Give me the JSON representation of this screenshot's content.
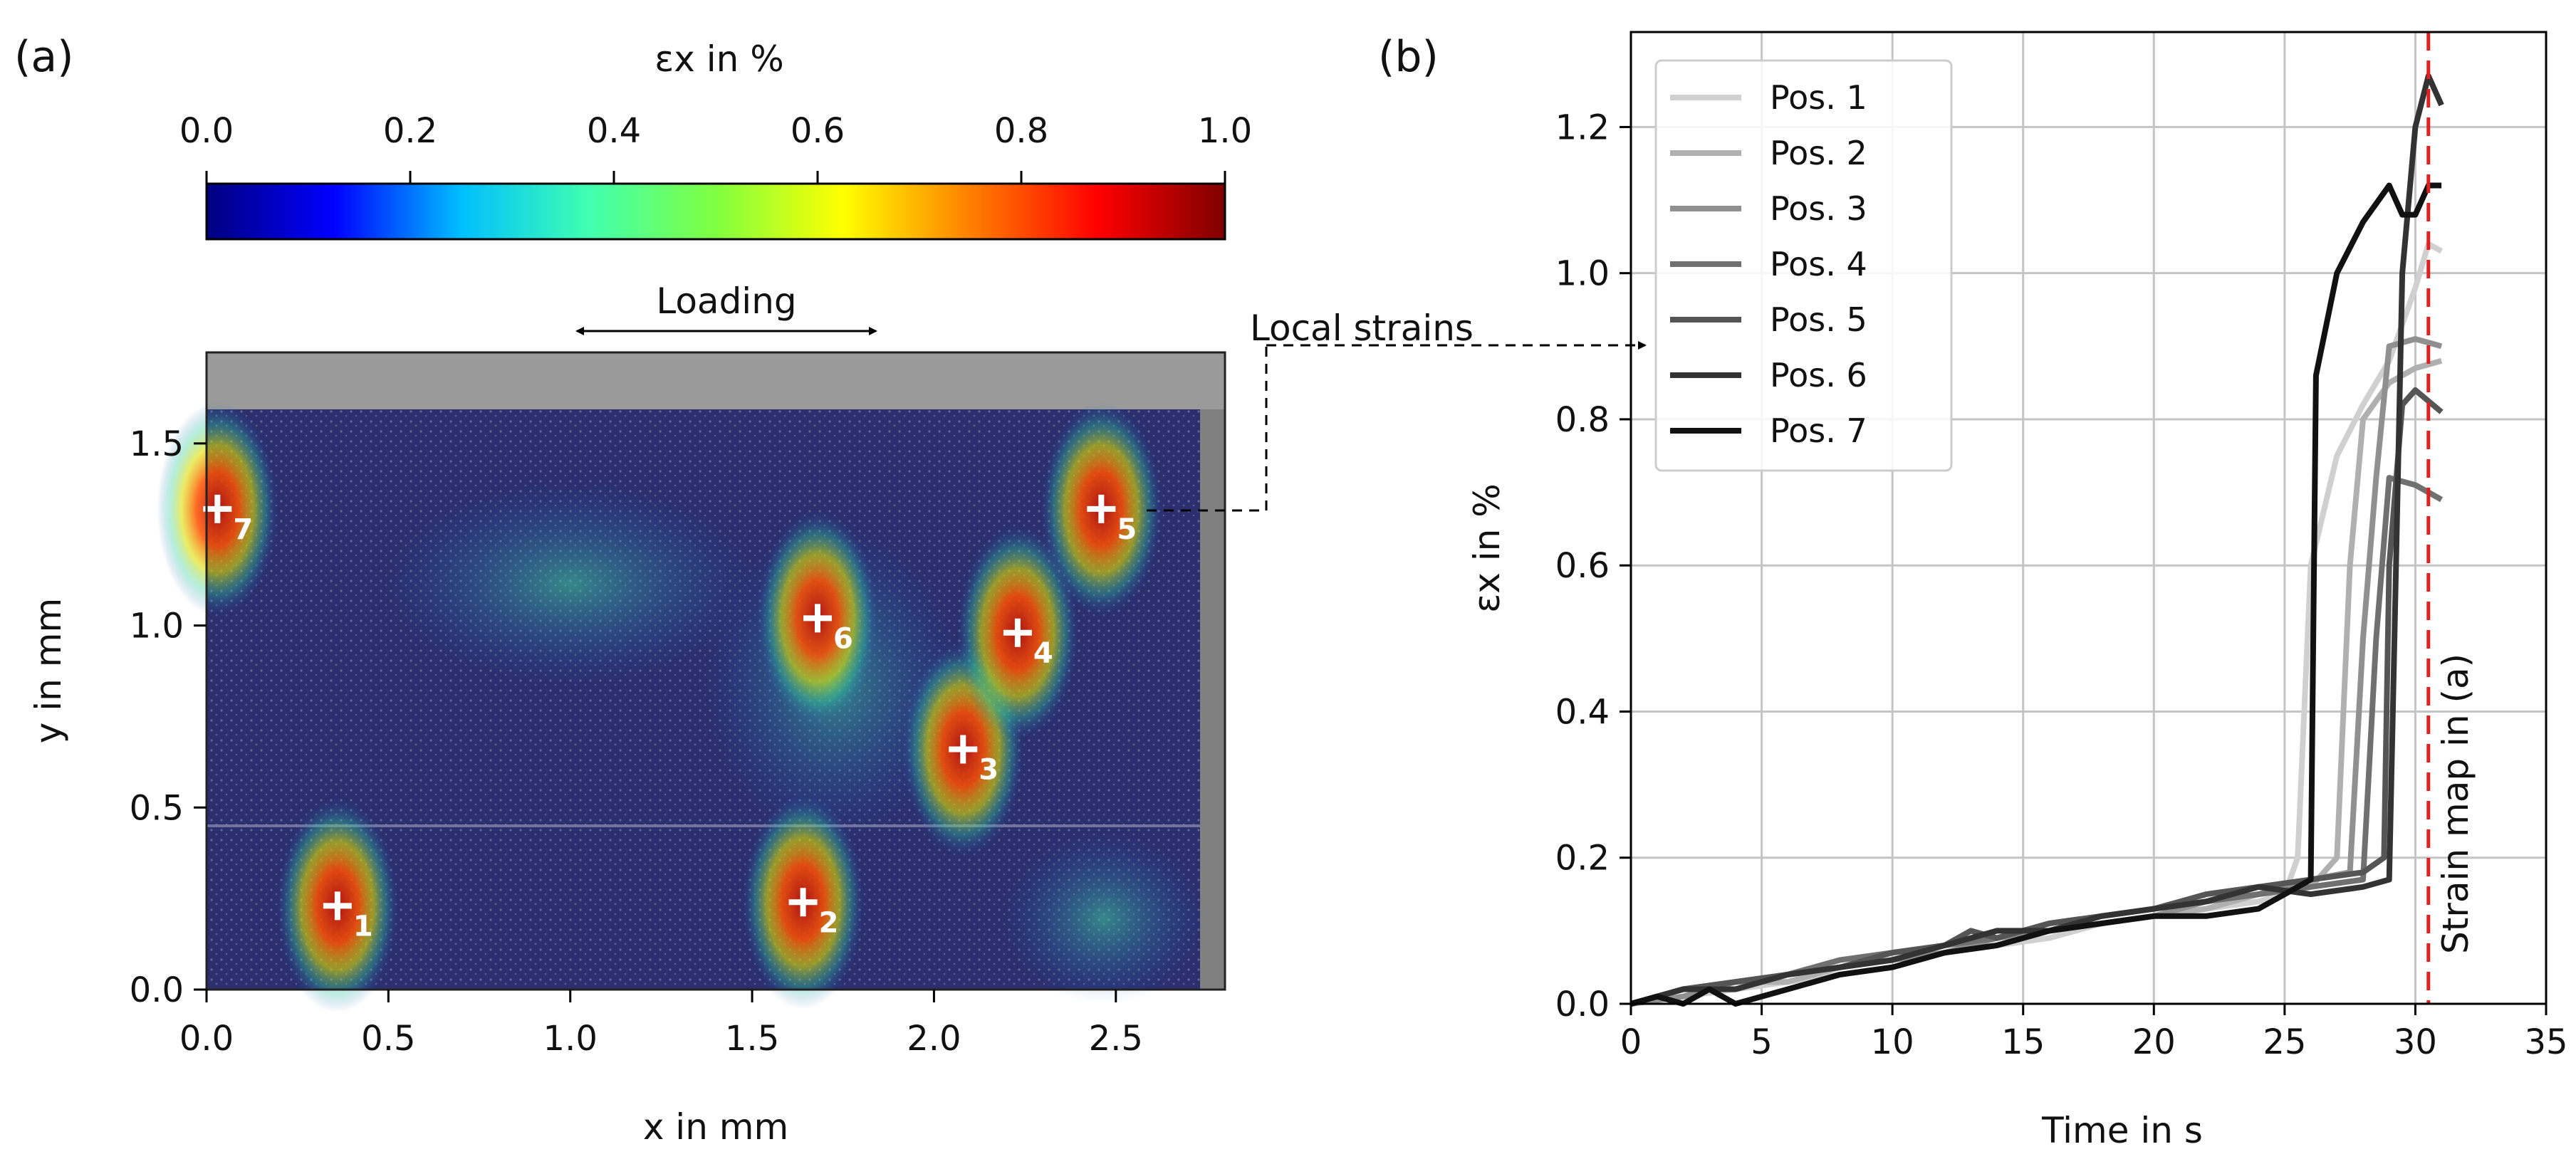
{
  "panel_a": {
    "label": "(a)",
    "colorbar": {
      "title": "εx in %",
      "ticks": [
        "0.0",
        "0.2",
        "0.4",
        "0.6",
        "0.8",
        "1.0"
      ],
      "colormap": "jet",
      "stops": [
        "#00007f",
        "#0000ff",
        "#00bfff",
        "#40ffb0",
        "#80ff40",
        "#ffff00",
        "#ff8000",
        "#ff0000",
        "#7f0000"
      ]
    },
    "loading_label": "Loading",
    "local_strains_label": "Local strains",
    "xlabel": "x in mm",
    "ylabel": "y in mm",
    "xticks": [
      "0.0",
      "0.5",
      "1.0",
      "1.5",
      "2.0",
      "2.5"
    ],
    "yticks": [
      "0.0",
      "0.5",
      "1.0",
      "1.5"
    ],
    "positions": [
      {
        "id": "1",
        "x": 0.36,
        "y": 0.23
      },
      {
        "id": "2",
        "x": 1.64,
        "y": 0.24
      },
      {
        "id": "3",
        "x": 2.08,
        "y": 0.66
      },
      {
        "id": "4",
        "x": 2.23,
        "y": 0.98
      },
      {
        "id": "5",
        "x": 2.46,
        "y": 1.32
      },
      {
        "id": "6",
        "x": 1.68,
        "y": 1.02
      },
      {
        "id": "7",
        "x": 0.03,
        "y": 1.32
      }
    ],
    "colors": {
      "background": "#2b2f6e",
      "specimen_top": "#8f8f8f"
    }
  },
  "chart_data": {
    "type": "line",
    "panel_label": "(b)",
    "title": "",
    "xlabel": "Time in s",
    "ylabel": "εx in %",
    "xlim": [
      0,
      35
    ],
    "ylim": [
      0,
      1.33
    ],
    "xticks": [
      "0",
      "5",
      "10",
      "15",
      "20",
      "25",
      "30",
      "35"
    ],
    "yticks": [
      "0.0",
      "0.2",
      "0.4",
      "0.6",
      "0.8",
      "1.0",
      "1.2"
    ],
    "grid": true,
    "legend_position": "top-left",
    "vline": {
      "x": 30.5,
      "label": "Strain map in (a)",
      "color": "#e02020"
    },
    "series": [
      {
        "name": "Pos. 1",
        "color": "#d0d0d0",
        "points": [
          [
            0,
            0
          ],
          [
            2,
            0.01
          ],
          [
            4,
            0.02
          ],
          [
            6,
            0.03
          ],
          [
            8,
            0.04
          ],
          [
            10,
            0.05
          ],
          [
            12,
            0.07
          ],
          [
            14,
            0.08
          ],
          [
            16,
            0.09
          ],
          [
            18,
            0.11
          ],
          [
            20,
            0.12
          ],
          [
            22,
            0.13
          ],
          [
            24,
            0.14
          ],
          [
            25,
            0.15
          ],
          [
            25.5,
            0.2
          ],
          [
            26,
            0.6
          ],
          [
            27,
            0.75
          ],
          [
            28,
            0.82
          ],
          [
            29,
            0.88
          ],
          [
            30,
            0.98
          ],
          [
            30.5,
            1.04
          ],
          [
            31,
            1.03
          ]
        ]
      },
      {
        "name": "Pos. 2",
        "color": "#b0b0b0",
        "points": [
          [
            0,
            0
          ],
          [
            2,
            0.02
          ],
          [
            4,
            0.03
          ],
          [
            6,
            0.03
          ],
          [
            8,
            0.05
          ],
          [
            10,
            0.06
          ],
          [
            12,
            0.07
          ],
          [
            14,
            0.08
          ],
          [
            16,
            0.1
          ],
          [
            18,
            0.11
          ],
          [
            20,
            0.12
          ],
          [
            22,
            0.13
          ],
          [
            24,
            0.15
          ],
          [
            26,
            0.16
          ],
          [
            27,
            0.2
          ],
          [
            27.5,
            0.6
          ],
          [
            28,
            0.8
          ],
          [
            29,
            0.85
          ],
          [
            30,
            0.87
          ],
          [
            31,
            0.88
          ]
        ]
      },
      {
        "name": "Pos. 3",
        "color": "#909090",
        "points": [
          [
            0,
            0
          ],
          [
            2,
            0.01
          ],
          [
            4,
            0.03
          ],
          [
            6,
            0.04
          ],
          [
            8,
            0.05
          ],
          [
            10,
            0.06
          ],
          [
            12,
            0.07
          ],
          [
            14,
            0.09
          ],
          [
            16,
            0.1
          ],
          [
            18,
            0.11
          ],
          [
            20,
            0.12
          ],
          [
            22,
            0.14
          ],
          [
            24,
            0.15
          ],
          [
            26,
            0.17
          ],
          [
            27.5,
            0.18
          ],
          [
            28,
            0.5
          ],
          [
            28.5,
            0.72
          ],
          [
            29,
            0.9
          ],
          [
            30,
            0.91
          ],
          [
            31,
            0.9
          ]
        ]
      },
      {
        "name": "Pos. 4",
        "color": "#707070",
        "points": [
          [
            0,
            0
          ],
          [
            2,
            0.02
          ],
          [
            4,
            0.03
          ],
          [
            6,
            0.04
          ],
          [
            8,
            0.06
          ],
          [
            10,
            0.07
          ],
          [
            12,
            0.08
          ],
          [
            14,
            0.09
          ],
          [
            16,
            0.11
          ],
          [
            18,
            0.12
          ],
          [
            20,
            0.13
          ],
          [
            22,
            0.14
          ],
          [
            24,
            0.15
          ],
          [
            26,
            0.16
          ],
          [
            28,
            0.17
          ],
          [
            28.5,
            0.5
          ],
          [
            29,
            0.72
          ],
          [
            30,
            0.71
          ],
          [
            31,
            0.69
          ]
        ]
      },
      {
        "name": "Pos. 5",
        "color": "#555555",
        "points": [
          [
            0,
            0
          ],
          [
            2,
            0.02
          ],
          [
            4,
            0.03
          ],
          [
            6,
            0.04
          ],
          [
            8,
            0.05
          ],
          [
            10,
            0.07
          ],
          [
            12,
            0.08
          ],
          [
            13,
            0.1
          ],
          [
            14,
            0.09
          ],
          [
            16,
            0.11
          ],
          [
            18,
            0.12
          ],
          [
            20,
            0.13
          ],
          [
            22,
            0.15
          ],
          [
            24,
            0.16
          ],
          [
            26,
            0.17
          ],
          [
            28,
            0.18
          ],
          [
            28.8,
            0.2
          ],
          [
            29,
            0.6
          ],
          [
            29.5,
            0.82
          ],
          [
            30,
            0.84
          ],
          [
            31,
            0.81
          ]
        ]
      },
      {
        "name": "Pos. 6",
        "color": "#333333",
        "points": [
          [
            0,
            0
          ],
          [
            2,
            0.02
          ],
          [
            4,
            0.02
          ],
          [
            6,
            0.04
          ],
          [
            8,
            0.05
          ],
          [
            10,
            0.06
          ],
          [
            12,
            0.08
          ],
          [
            14,
            0.1
          ],
          [
            16,
            0.1
          ],
          [
            18,
            0.12
          ],
          [
            20,
            0.13
          ],
          [
            22,
            0.14
          ],
          [
            24,
            0.16
          ],
          [
            26,
            0.15
          ],
          [
            28,
            0.16
          ],
          [
            29,
            0.17
          ],
          [
            29.2,
            0.5
          ],
          [
            29.5,
            1.0
          ],
          [
            30,
            1.2
          ],
          [
            30.5,
            1.27
          ],
          [
            31,
            1.23
          ]
        ]
      },
      {
        "name": "Pos. 7",
        "color": "#111111",
        "points": [
          [
            0,
            0
          ],
          [
            1,
            0.01
          ],
          [
            2,
            0.0
          ],
          [
            3,
            0.02
          ],
          [
            4,
            0.0
          ],
          [
            6,
            0.02
          ],
          [
            8,
            0.04
          ],
          [
            10,
            0.05
          ],
          [
            12,
            0.07
          ],
          [
            14,
            0.08
          ],
          [
            16,
            0.1
          ],
          [
            18,
            0.11
          ],
          [
            20,
            0.12
          ],
          [
            22,
            0.12
          ],
          [
            24,
            0.13
          ],
          [
            25,
            0.15
          ],
          [
            26,
            0.17
          ],
          [
            26.2,
            0.86
          ],
          [
            27,
            1.0
          ],
          [
            28,
            1.07
          ],
          [
            29,
            1.12
          ],
          [
            29.5,
            1.08
          ],
          [
            30,
            1.08
          ],
          [
            30.5,
            1.12
          ],
          [
            31,
            1.12
          ]
        ]
      }
    ]
  }
}
